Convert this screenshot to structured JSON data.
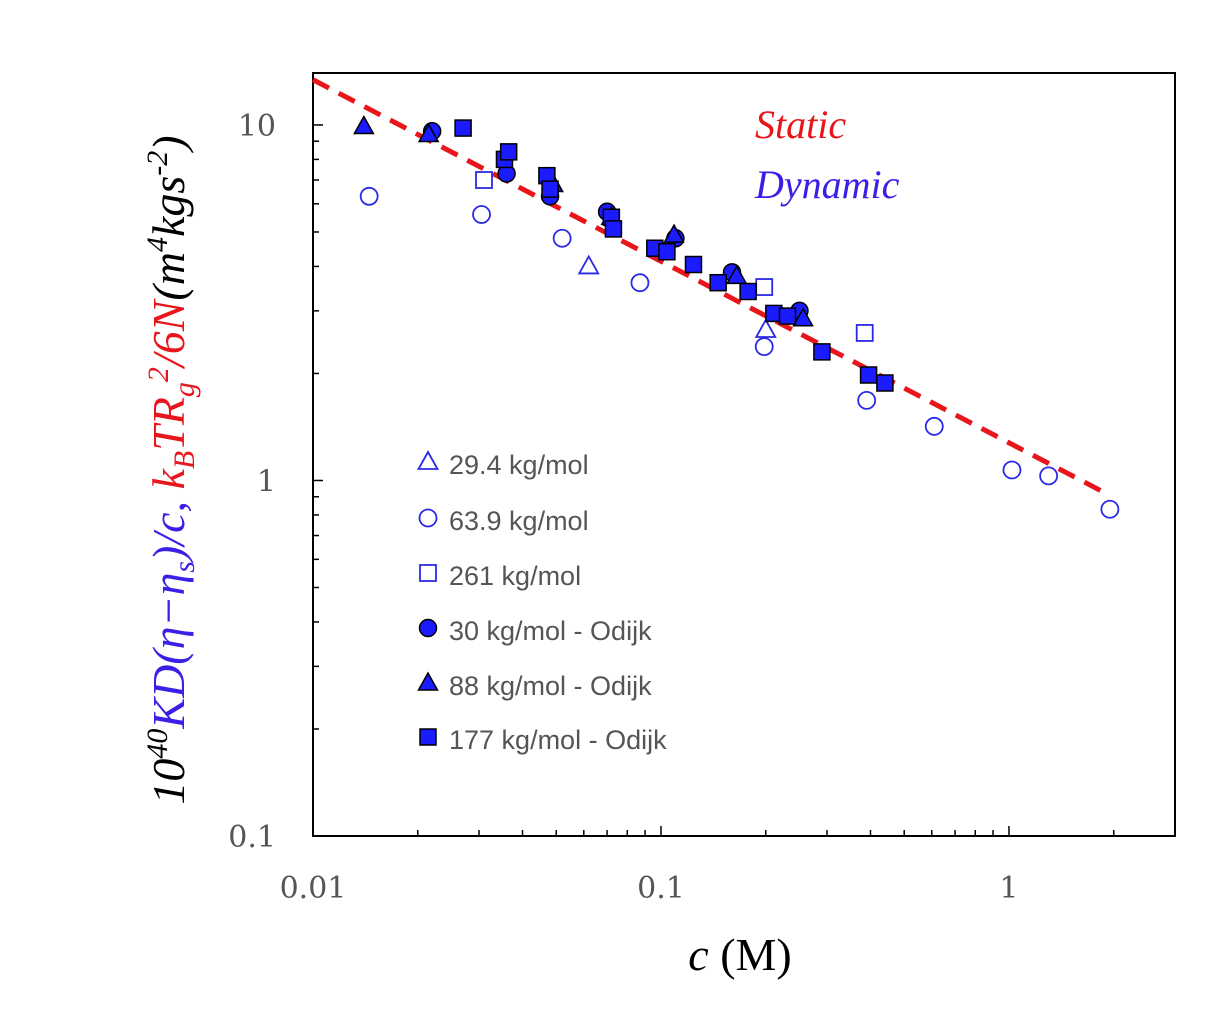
{
  "chart_data": {
    "type": "scatter",
    "x_scale": "log",
    "y_scale": "log",
    "xlim": [
      0.01,
      3
    ],
    "ylim": [
      0.1,
      14
    ],
    "x_ticks": [
      {
        "value": 0.01,
        "label": "0.01"
      },
      {
        "value": 0.1,
        "label": "0.1"
      },
      {
        "value": 1,
        "label": "1"
      }
    ],
    "y_ticks": [
      {
        "value": 0.1,
        "label": "0.1"
      },
      {
        "value": 1,
        "label": "1"
      },
      {
        "value": 10,
        "label": "10"
      }
    ],
    "xlabel": {
      "italic": "c",
      "rest": " (M)"
    },
    "ylabel": {
      "black_prefix": "10",
      "black_prefix_sup": "40",
      "blue_part": "KD(η−η",
      "blue_sub": "s",
      "blue_tail": ")/c, ",
      "red_part": "k",
      "red_sub1": "B",
      "red_mid": "TR",
      "red_sub2": "g",
      "red_sup": "2",
      "red_tail": "/6N",
      "black_suffix": "(m",
      "black_sup1": "4",
      "black_mid": "kgs",
      "black_sup2": "-2",
      "black_end": ")"
    },
    "annotations": {
      "static": "Static",
      "dynamic": "Dynamic"
    },
    "colors": {
      "blue": "#2a2ae6",
      "blue_text": "#3a1fe6",
      "red": "#e8161c",
      "fill_blue": "#1b1bff"
    },
    "fit_line": {
      "name": "Static",
      "style": "dashed",
      "color": "#e8161c",
      "x": [
        0.01,
        1.9
      ],
      "y": [
        13.4,
        0.92
      ]
    },
    "series": [
      {
        "name": "29.4 kg/mol",
        "marker": "triangle",
        "filled": false,
        "x": [
          0.062,
          0.2
        ],
        "y": [
          4.0,
          2.65
        ]
      },
      {
        "name": "63.9 kg/mol",
        "marker": "circle",
        "filled": false,
        "x": [
          0.0145,
          0.0305,
          0.052,
          0.087,
          0.198,
          0.39,
          0.61,
          1.02,
          1.3,
          1.95
        ],
        "y": [
          6.3,
          5.6,
          4.8,
          3.6,
          2.38,
          1.68,
          1.42,
          1.07,
          1.03,
          0.83
        ]
      },
      {
        "name": "261 kg/mol",
        "marker": "square",
        "filled": false,
        "x": [
          0.031,
          0.198,
          0.385
        ],
        "y": [
          7.0,
          3.5,
          2.6
        ]
      },
      {
        "name": "30 kg/mol - Odijk",
        "marker": "circle",
        "filled": true,
        "x": [
          0.022,
          0.036,
          0.048,
          0.07,
          0.11,
          0.16,
          0.25
        ],
        "y": [
          9.6,
          7.3,
          6.3,
          5.7,
          4.8,
          3.85,
          3.0
        ]
      },
      {
        "name": "88 kg/mol - Odijk",
        "marker": "triangle",
        "filled": true,
        "x": [
          0.014,
          0.0215,
          0.049,
          0.072,
          0.109,
          0.165,
          0.256
        ],
        "y": [
          9.9,
          9.4,
          6.8,
          5.5,
          4.9,
          3.75,
          2.85
        ]
      },
      {
        "name": "177 kg/mol - Odijk",
        "marker": "square",
        "filled": true,
        "x": [
          0.027,
          0.0355,
          0.0365,
          0.047,
          0.048,
          0.072,
          0.073,
          0.096,
          0.104,
          0.124,
          0.146,
          0.178,
          0.211,
          0.231,
          0.29,
          0.395,
          0.44
        ],
        "y": [
          9.8,
          8.0,
          8.4,
          7.2,
          6.6,
          5.5,
          5.1,
          4.5,
          4.4,
          4.05,
          3.6,
          3.4,
          2.95,
          2.9,
          2.3,
          1.98,
          1.88
        ]
      }
    ]
  }
}
